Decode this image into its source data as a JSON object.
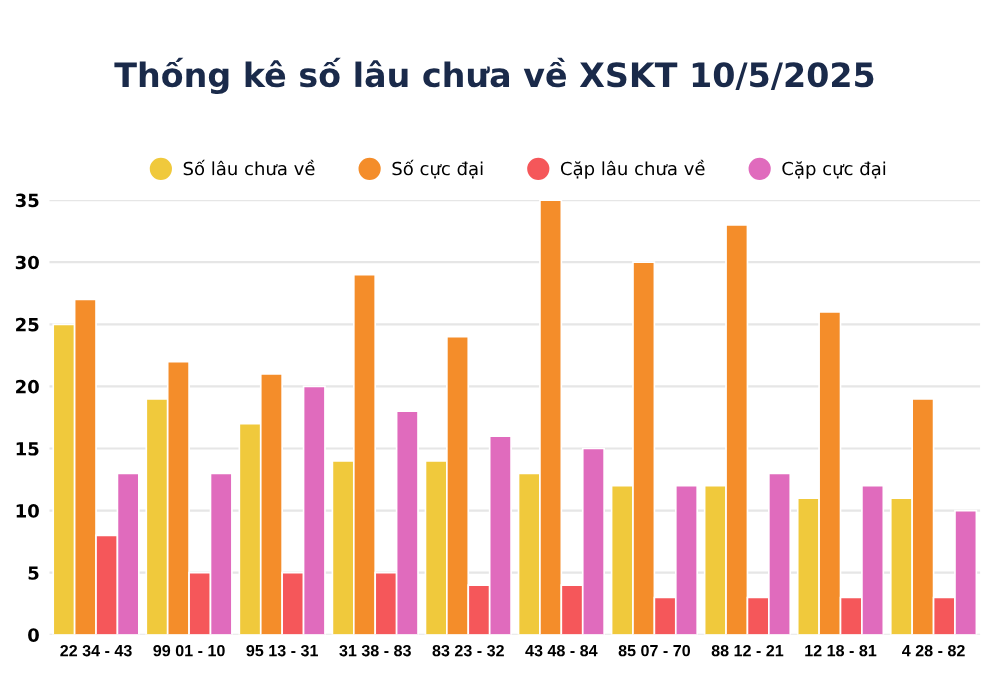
{
  "chart_data": {
    "type": "bar",
    "title": "Thống kê số lâu chưa về XSKT 10/5/2025",
    "categories": [
      "22 34 - 43",
      "99 01 - 10",
      "95 13 - 31",
      "31 38 - 83",
      "83 23 - 32",
      "43 48 - 84",
      "85 07 - 70",
      "88 12 - 21",
      "12 18 - 81",
      "4 28 - 82"
    ],
    "series": [
      {
        "name": "Số lâu chưa về",
        "color": "#f0c93c",
        "values": [
          25,
          19,
          17,
          14,
          14,
          13,
          12,
          12,
          11,
          11
        ]
      },
      {
        "name": "Số cực đại",
        "color": "#f48d2a",
        "values": [
          27,
          22,
          21,
          29,
          24,
          35,
          30,
          33,
          26,
          19
        ]
      },
      {
        "name": "Cặp lâu chưa về",
        "color": "#f5575a",
        "values": [
          8,
          5,
          5,
          5,
          4,
          4,
          3,
          3,
          3,
          3
        ]
      },
      {
        "name": "Cặp cực đại",
        "color": "#e06bbd",
        "values": [
          13,
          13,
          20,
          18,
          16,
          15,
          12,
          13,
          12,
          10
        ]
      }
    ],
    "ylim": [
      0,
      35
    ],
    "yticks": [
      0,
      5,
      10,
      15,
      20,
      25,
      30,
      35
    ],
    "grid": "y",
    "legend": "top"
  }
}
